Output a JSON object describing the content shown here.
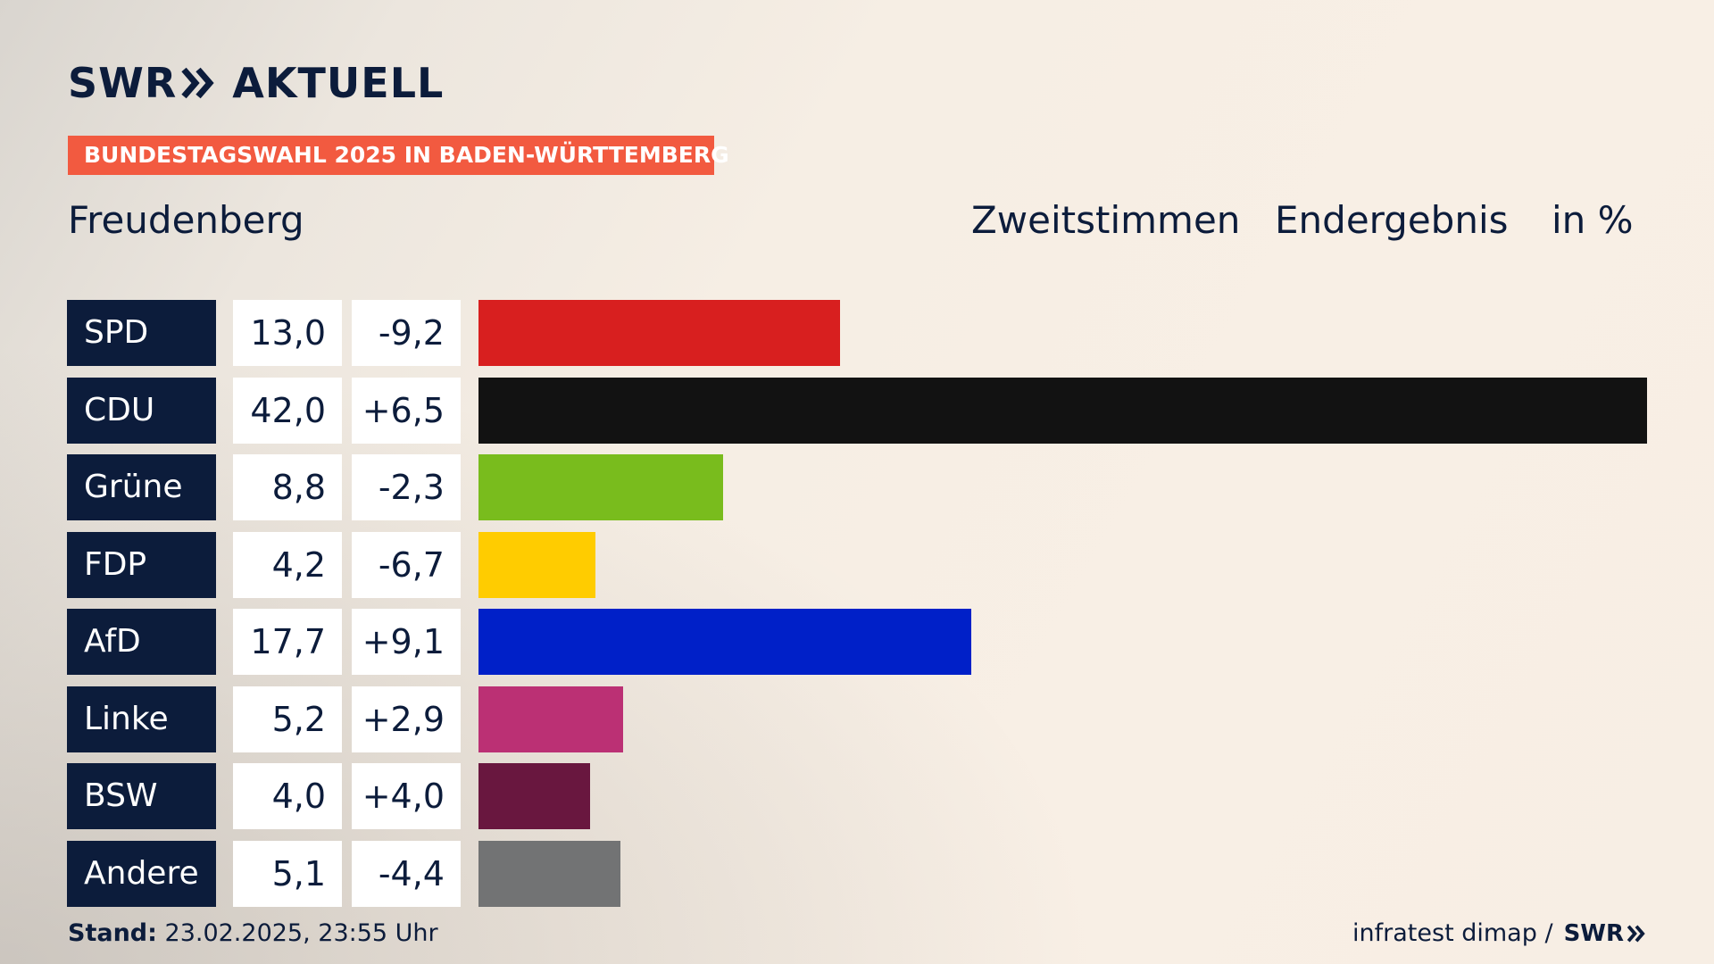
{
  "brand": {
    "logo_text_left": "SWR",
    "logo_text_right": "AKTUELL",
    "footer_logo": "SWR",
    "chevron_icon": "double-chevron-right-icon"
  },
  "header": {
    "subtitle": "BUNDESTAGSWAHL 2025 IN BADEN-WÜRTTEMBERG",
    "place": "Freudenberg",
    "vote_type": "Zweitstimmen",
    "result_type": "Endergebnis",
    "unit": "in %"
  },
  "footer": {
    "stand_label": "Stand:",
    "stand_value": "23.02.2025, 23:55 Uhr",
    "source": "infratest dimap /"
  },
  "chart_data": {
    "type": "bar",
    "orientation": "horizontal",
    "categories": [
      "SPD",
      "CDU",
      "Grüne",
      "FDP",
      "AfD",
      "Linke",
      "BSW",
      "Andere"
    ],
    "values": [
      13.0,
      42.0,
      8.8,
      4.2,
      17.7,
      5.2,
      4.0,
      5.1
    ],
    "value_labels": [
      "13,0",
      "42,0",
      "8,8",
      "4,2",
      "17,7",
      "5,2",
      "4,0",
      "5,1"
    ],
    "diff_labels": [
      "-9,2",
      "+6,5",
      "-2,3",
      "-6,7",
      "+9,1",
      "+2,9",
      "+4,0",
      "-4,4"
    ],
    "colors": [
      "#d81f1f",
      "#121212",
      "#79bc1d",
      "#ffcc00",
      "#0020c8",
      "#bb3074",
      "#69173f",
      "#727374"
    ],
    "xlim": [
      0,
      42.0
    ],
    "grid": false,
    "legend": "none"
  }
}
